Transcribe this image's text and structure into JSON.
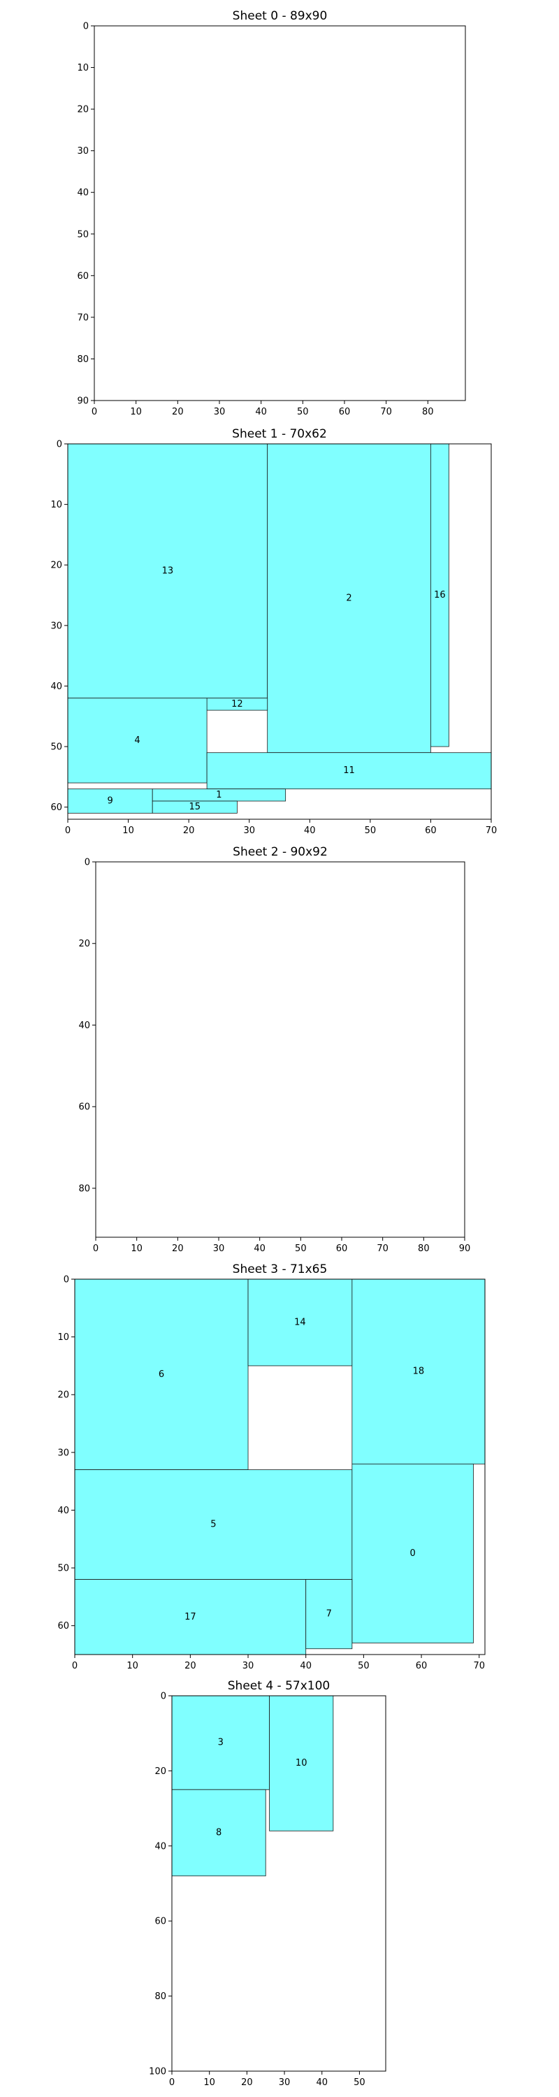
{
  "colors": {
    "piece_fill": "#80ffff",
    "piece_edge": "#1a1a1a",
    "frame": "#000000"
  },
  "chart_data": [
    {
      "type": "rect-packing",
      "title": "Sheet 0 - 89x90",
      "sheet_width": 89,
      "sheet_height": 90,
      "xlim": [
        0,
        89
      ],
      "ylim": [
        90,
        0
      ],
      "xticks": [
        0,
        10,
        20,
        30,
        40,
        50,
        60,
        70,
        80
      ],
      "yticks": [
        0,
        10,
        20,
        30,
        40,
        50,
        60,
        70,
        80,
        90
      ],
      "pieces": []
    },
    {
      "type": "rect-packing",
      "title": "Sheet 1 - 70x62",
      "sheet_width": 70,
      "sheet_height": 62,
      "xlim": [
        0,
        70
      ],
      "ylim": [
        62,
        0
      ],
      "xticks": [
        0,
        10,
        20,
        30,
        40,
        50,
        60,
        70
      ],
      "yticks": [
        0,
        10,
        20,
        30,
        40,
        50,
        60
      ],
      "pieces": [
        {
          "id": "13",
          "x": 0,
          "y": 0,
          "w": 33,
          "h": 42
        },
        {
          "id": "2",
          "x": 33,
          "y": 0,
          "w": 27,
          "h": 51
        },
        {
          "id": "16",
          "x": 60,
          "y": 0,
          "w": 3,
          "h": 50
        },
        {
          "id": "12",
          "x": 23,
          "y": 42,
          "w": 10,
          "h": 2
        },
        {
          "id": "4",
          "x": 0,
          "y": 42,
          "w": 23,
          "h": 14
        },
        {
          "id": "11",
          "x": 23,
          "y": 51,
          "w": 47,
          "h": 6
        },
        {
          "id": "9",
          "x": 0,
          "y": 57,
          "w": 14,
          "h": 4
        },
        {
          "id": "1",
          "x": 14,
          "y": 57,
          "w": 22,
          "h": 2
        },
        {
          "id": "15",
          "x": 14,
          "y": 59,
          "w": 14,
          "h": 2
        }
      ]
    },
    {
      "type": "rect-packing",
      "title": "Sheet 2 - 90x92",
      "sheet_width": 90,
      "sheet_height": 92,
      "xlim": [
        0,
        90
      ],
      "ylim": [
        92,
        0
      ],
      "xticks": [
        0,
        10,
        20,
        30,
        40,
        50,
        60,
        70,
        80,
        90
      ],
      "yticks": [
        0,
        20,
        40,
        60,
        80
      ],
      "pieces": []
    },
    {
      "type": "rect-packing",
      "title": "Sheet 3 - 71x65",
      "sheet_width": 71,
      "sheet_height": 65,
      "xlim": [
        0,
        71
      ],
      "ylim": [
        65,
        0
      ],
      "xticks": [
        0,
        10,
        20,
        30,
        40,
        50,
        60,
        70
      ],
      "yticks": [
        0,
        10,
        20,
        30,
        40,
        50,
        60
      ],
      "pieces": [
        {
          "id": "6",
          "x": 0,
          "y": 0,
          "w": 30,
          "h": 33
        },
        {
          "id": "14",
          "x": 30,
          "y": 0,
          "w": 18,
          "h": 15
        },
        {
          "id": "18",
          "x": 48,
          "y": 0,
          "w": 23,
          "h": 32
        },
        {
          "id": "5",
          "x": 0,
          "y": 33,
          "w": 48,
          "h": 19
        },
        {
          "id": "0",
          "x": 48,
          "y": 32,
          "w": 21,
          "h": 31
        },
        {
          "id": "17",
          "x": 0,
          "y": 52,
          "w": 40,
          "h": 13
        },
        {
          "id": "7",
          "x": 40,
          "y": 52,
          "w": 8,
          "h": 12
        }
      ]
    },
    {
      "type": "rect-packing",
      "title": "Sheet 4 - 57x100",
      "sheet_width": 57,
      "sheet_height": 100,
      "xlim": [
        0,
        57
      ],
      "ylim": [
        100,
        0
      ],
      "xticks": [
        0,
        10,
        20,
        30,
        40,
        50
      ],
      "yticks": [
        0,
        20,
        40,
        60,
        80,
        100
      ],
      "pieces": [
        {
          "id": "3",
          "x": 0,
          "y": 0,
          "w": 26,
          "h": 25
        },
        {
          "id": "10",
          "x": 26,
          "y": 0,
          "w": 17,
          "h": 36
        },
        {
          "id": "8",
          "x": 0,
          "y": 25,
          "w": 25,
          "h": 23
        }
      ]
    }
  ]
}
